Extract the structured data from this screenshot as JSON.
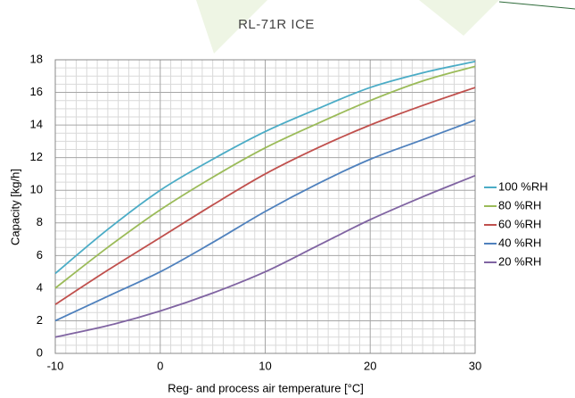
{
  "chart_data": {
    "type": "line",
    "title": "RL-71R ICE",
    "x_label": "Reg- and process air temperature [°C]",
    "y_label": "Capacity [kg/h]",
    "x": [
      -10,
      -5,
      0,
      5,
      10,
      15,
      20,
      25,
      30
    ],
    "series": [
      {
        "name": "100 %RH",
        "color": "#4bacc6",
        "values": [
          4.9,
          7.6,
          10.0,
          11.9,
          13.6,
          15.0,
          16.3,
          17.2,
          17.9
        ]
      },
      {
        "name": "80 %RH",
        "color": "#9bbb59",
        "values": [
          4.0,
          6.5,
          8.8,
          10.8,
          12.6,
          14.1,
          15.5,
          16.7,
          17.6
        ]
      },
      {
        "name": "60 %RH",
        "color": "#c0504d",
        "values": [
          3.0,
          5.1,
          7.1,
          9.1,
          11.0,
          12.6,
          14.0,
          15.2,
          16.3
        ]
      },
      {
        "name": "40 %RH",
        "color": "#4f81bd",
        "values": [
          2.0,
          3.5,
          5.0,
          6.8,
          8.7,
          10.4,
          11.9,
          13.1,
          14.3
        ]
      },
      {
        "name": "20 %RH",
        "color": "#8064a2",
        "values": [
          1.0,
          1.7,
          2.6,
          3.7,
          5.0,
          6.6,
          8.2,
          9.6,
          10.9
        ]
      }
    ],
    "xlim": [
      -10,
      30
    ],
    "xticks": [
      -10,
      0,
      10,
      20,
      30
    ],
    "ylim": [
      0,
      18
    ],
    "yticks": [
      0,
      2,
      4,
      6,
      8,
      10,
      12,
      14,
      16,
      18
    ],
    "grid": true,
    "legend": "right"
  }
}
